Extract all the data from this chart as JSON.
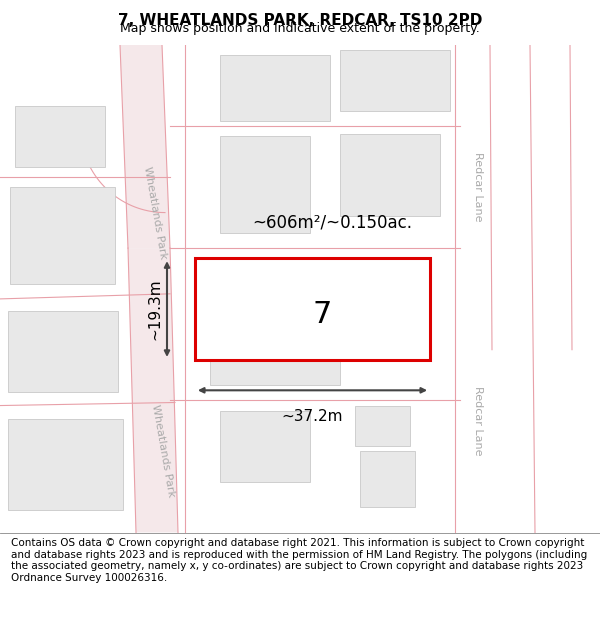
{
  "title": "7, WHEATLANDS PARK, REDCAR, TS10 2PD",
  "subtitle": "Map shows position and indicative extent of the property.",
  "footer": "Contains OS data © Crown copyright and database right 2021. This information is subject to Crown copyright and database rights 2023 and is reproduced with the permission of HM Land Registry. The polygons (including the associated geometry, namely x, y co-ordinates) are subject to Crown copyright and database rights 2023 Ordnance Survey 100026316.",
  "map_bg": "#ffffff",
  "road_line_color": "#e8a0a8",
  "road_fill_color": "#f5e8ea",
  "building_fill": "#e8e8e8",
  "building_edge": "#c8c8c8",
  "plot_color": "#dd0000",
  "plot_label": "7",
  "area_label": "~606m²/~0.150ac.",
  "width_label": "~37.2m",
  "height_label": "~19.3m",
  "road_label_wp": "Wheatlands Park",
  "road_label_rl": "Redcar Lane",
  "road_text_color": "#aaaaaa",
  "dim_color": "#444444",
  "title_fontsize": 11,
  "subtitle_fontsize": 9,
  "footer_fontsize": 7.5
}
